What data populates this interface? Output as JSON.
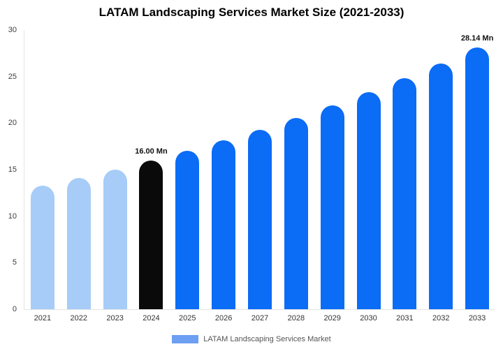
{
  "title": "LATAM Landscaping Services Market Size (2021-2033)",
  "legend": {
    "label": "LATAM Landscaping Services Market",
    "swatch_color": "#6d9ff2"
  },
  "colors": {
    "light_blue": "#a6ccf7",
    "highlight_black": "#0a0a0a",
    "blue": "#0b6cf5",
    "axis_text": "#3c3c3c"
  },
  "chart_data": {
    "type": "bar",
    "title": "LATAM Landscaping Services Market Size (2021-2033)",
    "categories": [
      "2021",
      "2022",
      "2023",
      "2024",
      "2025",
      "2026",
      "2027",
      "2028",
      "2029",
      "2030",
      "2031",
      "2032",
      "2033"
    ],
    "values": [
      13.26,
      14.12,
      15.03,
      16.0,
      17.04,
      18.14,
      19.31,
      20.56,
      21.89,
      23.31,
      24.82,
      26.43,
      28.14
    ],
    "bar_colors": [
      "#a6ccf7",
      "#a6ccf7",
      "#a6ccf7",
      "#0a0a0a",
      "#0b6cf5",
      "#0b6cf5",
      "#0b6cf5",
      "#0b6cf5",
      "#0b6cf5",
      "#0b6cf5",
      "#0b6cf5",
      "#0b6cf5",
      "#0b6cf5"
    ],
    "data_labels": [
      null,
      null,
      null,
      "16.00 Mn",
      null,
      null,
      null,
      null,
      null,
      null,
      null,
      null,
      "28.14 Mn"
    ],
    "xlabel": "",
    "ylabel": "",
    "ylim": [
      0,
      30
    ],
    "ytick_step": 5,
    "grid": false,
    "legend_entries": [
      "LATAM Landscaping Services Market"
    ],
    "legend_position": "bottom",
    "units": "Mn"
  }
}
